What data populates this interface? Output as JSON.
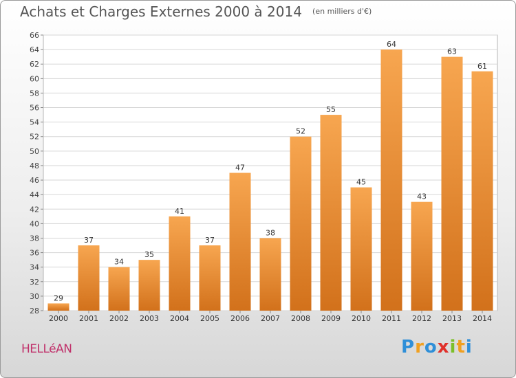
{
  "header": {
    "title": "Achats et Charges Externes 2000 à 2014",
    "unit": "(en milliers d'€)"
  },
  "footer": {
    "commune": "HELLéAN",
    "brand": "Proxiti"
  },
  "colors": {
    "bar_light": "#f7a650",
    "bar_dark": "#d2711b",
    "title": "#555555",
    "commune": "#c0306a"
  },
  "chart_data": {
    "type": "bar",
    "title": "Achats et Charges Externes 2000 à 2014",
    "subtitle": "(en milliers d'€)",
    "xlabel": "",
    "ylabel": "",
    "categories": [
      "2000",
      "2001",
      "2002",
      "2003",
      "2004",
      "2005",
      "2006",
      "2007",
      "2008",
      "2009",
      "2010",
      "2011",
      "2012",
      "2013",
      "2014"
    ],
    "values": [
      29,
      37,
      34,
      35,
      41,
      37,
      47,
      38,
      52,
      55,
      45,
      64,
      43,
      63,
      61
    ],
    "ylim": [
      28,
      66
    ],
    "yticks": [
      28,
      30,
      32,
      34,
      36,
      38,
      40,
      42,
      44,
      46,
      48,
      50,
      52,
      54,
      56,
      58,
      60,
      62,
      64,
      66
    ],
    "grid": true,
    "legend": "none"
  }
}
